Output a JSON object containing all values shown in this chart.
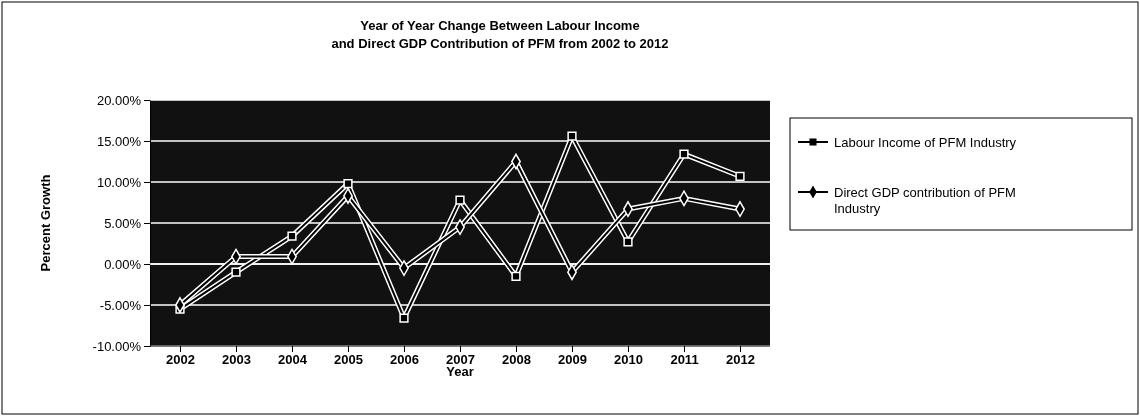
{
  "chart_data": {
    "type": "line",
    "title": "Year of Year Change Between Labour Income\nand Direct GDP Contribution of PFM from 2002 to 2012",
    "xlabel": "Year",
    "ylabel": "Percent Growth",
    "categories": [
      "2002",
      "2003",
      "2004",
      "2005",
      "2006",
      "2007",
      "2008",
      "2009",
      "2010",
      "2011",
      "2012"
    ],
    "series": [
      {
        "name": "Labour Income of PFM Industry",
        "color": "#000000",
        "marker": "square",
        "values": [
          -5.5,
          -1.0,
          3.4,
          9.8,
          -6.6,
          7.8,
          -1.5,
          15.6,
          2.7,
          13.4,
          10.7
        ]
      },
      {
        "name": "Direct GDP contribution of PFM Industry",
        "color": "#000000",
        "marker": "diamond",
        "values": [
          -5.0,
          0.9,
          0.9,
          8.3,
          -0.5,
          4.5,
          12.5,
          -1.0,
          6.7,
          8.0,
          6.7
        ]
      }
    ],
    "ylim": [
      -10,
      20
    ],
    "yticks": [
      {
        "value": -10,
        "label": "-10.00%"
      },
      {
        "value": -5,
        "label": "-5.00%"
      },
      {
        "value": 0,
        "label": "0.00%"
      },
      {
        "value": 5,
        "label": "5.00%"
      },
      {
        "value": 10,
        "label": "10.00%"
      },
      {
        "value": 15,
        "label": "15.00%"
      },
      {
        "value": 20,
        "label": "20.00%"
      }
    ],
    "grid": "y",
    "legend": "right"
  }
}
